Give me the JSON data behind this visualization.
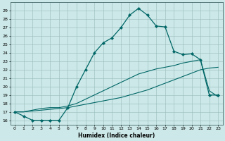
{
  "xlabel": "Humidex (Indice chaleur)",
  "bg_color": "#cce8e8",
  "line_color": "#006666",
  "grid_color": "#99bbbb",
  "xlim": [
    -0.5,
    23.5
  ],
  "ylim": [
    15.5,
    30.0
  ],
  "yticks": [
    16,
    17,
    18,
    19,
    20,
    21,
    22,
    23,
    24,
    25,
    26,
    27,
    28,
    29
  ],
  "xticks": [
    0,
    1,
    2,
    3,
    4,
    5,
    6,
    7,
    8,
    9,
    10,
    11,
    12,
    13,
    14,
    15,
    16,
    17,
    18,
    19,
    20,
    21,
    22,
    23
  ],
  "series1_x": [
    0,
    1,
    2,
    3,
    4,
    5,
    6,
    7,
    8,
    9,
    10,
    11,
    12,
    13,
    14,
    15,
    16,
    17,
    18,
    19,
    20,
    21,
    22,
    23
  ],
  "series1_y": [
    17.0,
    16.5,
    16.0,
    16.0,
    16.0,
    16.0,
    17.5,
    20.0,
    22.0,
    24.0,
    25.2,
    25.8,
    27.0,
    28.5,
    29.3,
    28.5,
    27.2,
    27.1,
    24.2,
    23.8,
    23.9,
    23.2,
    19.0,
    19.0
  ],
  "series2_x": [
    0,
    1,
    2,
    3,
    4,
    5,
    6,
    7,
    8,
    9,
    10,
    11,
    12,
    13,
    14,
    15,
    16,
    17,
    18,
    19,
    20,
    21,
    22,
    23
  ],
  "series2_y": [
    17.0,
    17.0,
    17.1,
    17.2,
    17.3,
    17.4,
    17.5,
    17.7,
    17.9,
    18.1,
    18.3,
    18.5,
    18.7,
    19.0,
    19.3,
    19.6,
    20.0,
    20.4,
    20.8,
    21.2,
    21.6,
    22.0,
    22.2,
    22.3
  ],
  "series3_x": [
    0,
    1,
    2,
    3,
    4,
    5,
    6,
    7,
    8,
    9,
    10,
    11,
    12,
    13,
    14,
    15,
    16,
    17,
    18,
    19,
    20,
    21,
    22,
    23
  ],
  "series3_y": [
    17.0,
    17.0,
    17.2,
    17.4,
    17.5,
    17.5,
    17.7,
    18.0,
    18.5,
    19.0,
    19.5,
    20.0,
    20.5,
    21.0,
    21.5,
    21.8,
    22.1,
    22.3,
    22.5,
    22.8,
    23.0,
    23.2,
    19.5,
    18.8
  ]
}
